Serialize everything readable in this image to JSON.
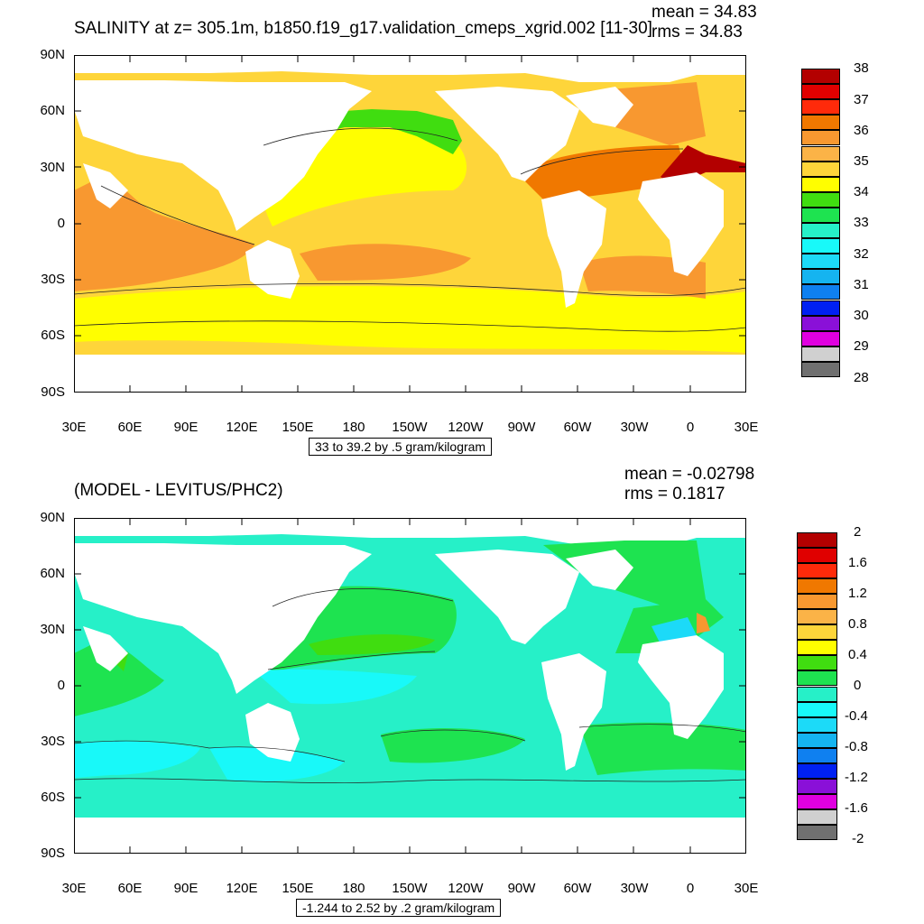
{
  "panels": [
    {
      "title": "SALINITY at z= 305.1m, b1850.f19_g17.validation_cmeps_xgrid.002 [11-30]",
      "mean_text": "mean = 34.83",
      "rms_text": "rms = 34.83",
      "info": "33 to 39.2 by .5 gram/kilogram",
      "colorbar_labels": [
        "38",
        "37",
        "36",
        "35",
        "34",
        "33",
        "32",
        "31",
        "30",
        "29",
        "28"
      ],
      "colorbar_colors": [
        "#b30000",
        "#e00000",
        "#ff2a0a",
        "#f07800",
        "#f89830",
        "#fbb347",
        "#fed53a",
        "#fffe00",
        "#40dd10",
        "#1ee350",
        "#26f0c8",
        "#18f9f9",
        "#1cdaf8",
        "#15b4f0",
        "#0f80f0",
        "#0020f2",
        "#8a10d8",
        "#e000e0",
        "#d0d0d0",
        "#707070"
      ],
      "ocean_base_color": "#fed53a"
    },
    {
      "title": "(MODEL - LEVITUS/PHC2)",
      "mean_text": "mean = -0.02798",
      "rms_text": "rms = 0.1817",
      "info": "-1.244 to 2.52 by .2 gram/kilogram",
      "colorbar_labels": [
        "2",
        "1.6",
        "1.2",
        "0.8",
        "0.4",
        "0",
        "-0.4",
        "-0.8",
        "-1.2",
        "-1.6",
        "-2"
      ],
      "colorbar_colors": [
        "#b30000",
        "#e00000",
        "#ff2a0a",
        "#f07800",
        "#f89830",
        "#fbb347",
        "#fed53a",
        "#fffe00",
        "#40dd10",
        "#1ee350",
        "#26f0c8",
        "#18f9f9",
        "#1cdaf8",
        "#15b4f0",
        "#0f80f0",
        "#0020f2",
        "#8a10d8",
        "#e000e0",
        "#d0d0d0",
        "#707070"
      ],
      "ocean_base_color": "#26f0c8"
    }
  ],
  "axes": {
    "y_labels": [
      "90N",
      "60N",
      "30N",
      "0",
      "30S",
      "60S",
      "90S"
    ],
    "x_labels": [
      "30E",
      "60E",
      "90E",
      "120E",
      "150E",
      "180",
      "150W",
      "120W",
      "90W",
      "60W",
      "30W",
      "0",
      "30E"
    ]
  }
}
